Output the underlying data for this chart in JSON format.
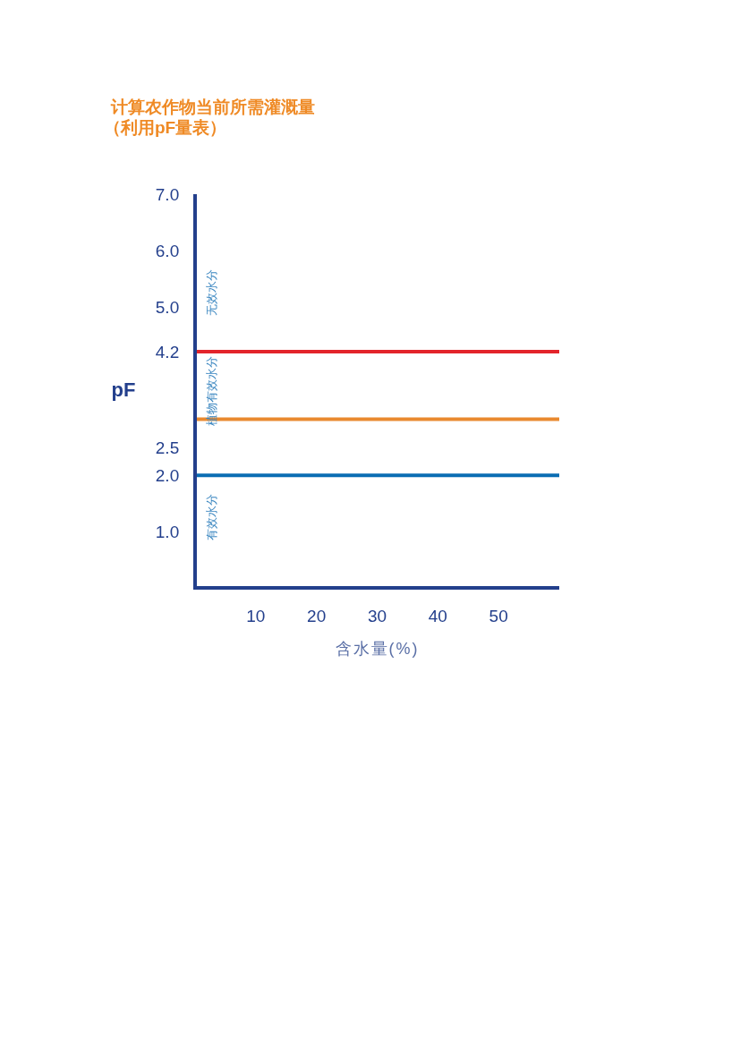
{
  "chart_data": {
    "type": "line",
    "title": "计算农作物当前所需灌溉量",
    "subtitle": "（利用pF量表）",
    "xlabel": "含水量(%)",
    "ylabel": "pF",
    "xlim": [
      0,
      60
    ],
    "xticks": [
      10,
      20,
      30,
      40,
      50
    ],
    "ylim": [
      0,
      7
    ],
    "yticks": [
      {
        "value": 1,
        "label": "1.0"
      },
      {
        "value": 2,
        "label": "2.0"
      },
      {
        "value": 2.5,
        "label": "2.5"
      },
      {
        "value": 4.2,
        "label": "4.2"
      },
      {
        "value": 5,
        "label": "5.0"
      },
      {
        "value": 6,
        "label": "6.0"
      },
      {
        "value": 7,
        "label": "7.0"
      }
    ],
    "ref_lines": [
      {
        "axis": "y",
        "value": 4.2,
        "color": "#e3242b"
      },
      {
        "axis": "y",
        "value": 3.0,
        "color": "#e9892f"
      },
      {
        "axis": "y",
        "value": 2.0,
        "color": "#0a6db3"
      }
    ],
    "annotations": [
      "无效水分",
      "植物有效水分",
      "有效水分"
    ]
  }
}
